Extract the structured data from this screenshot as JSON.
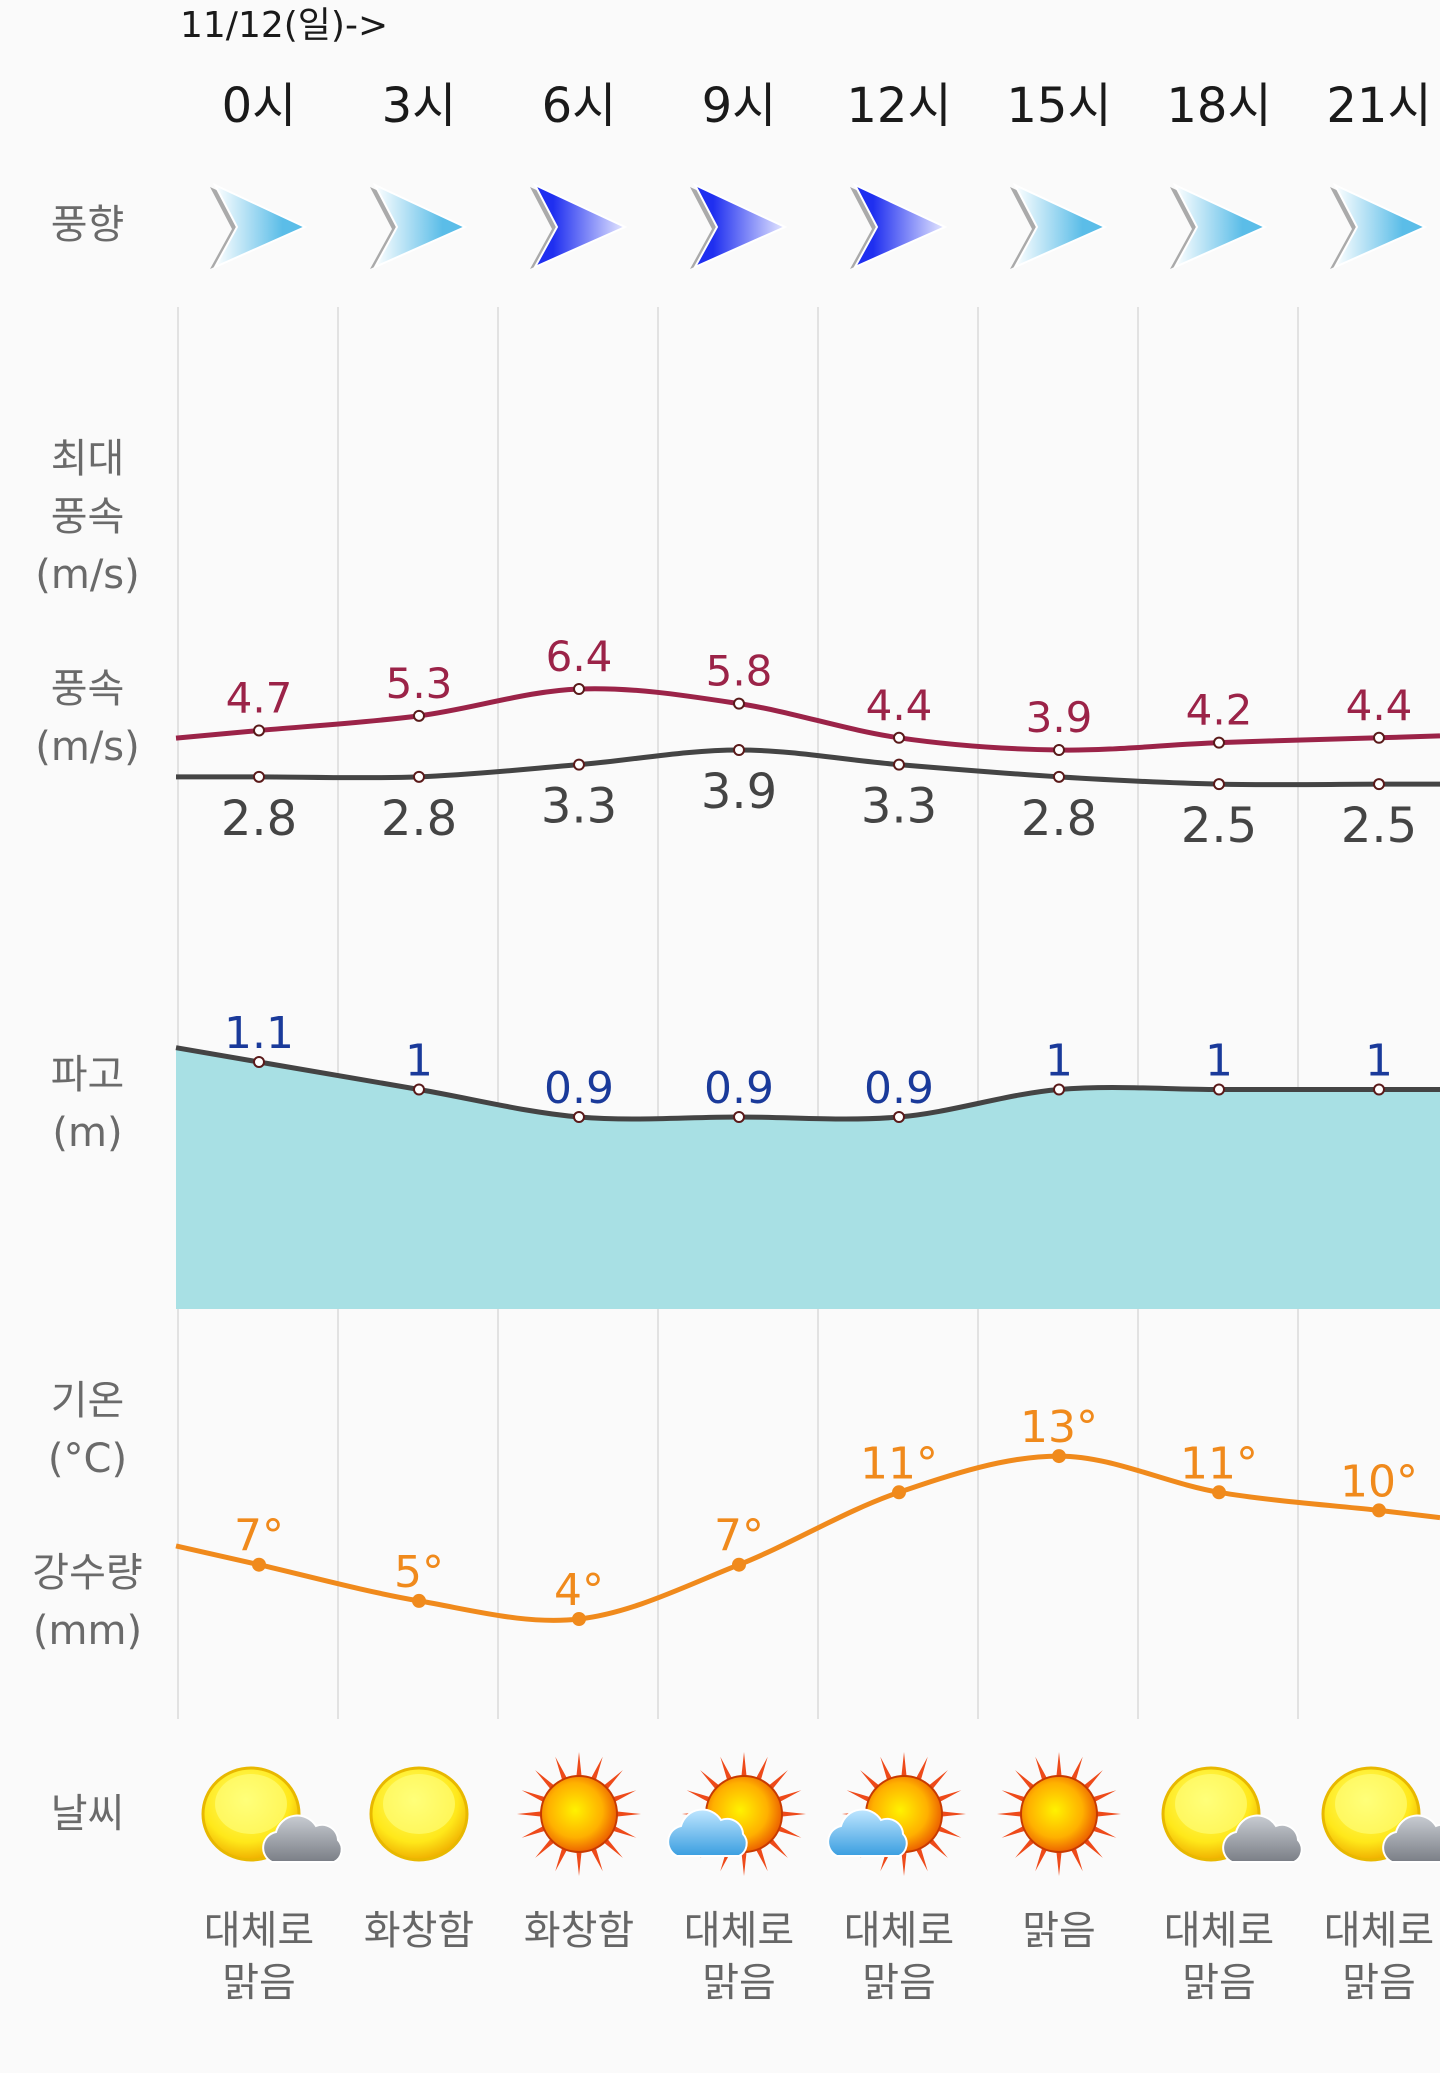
{
  "header": {
    "date": "11/12(일)->"
  },
  "hours": [
    "0시",
    "3시",
    "6시",
    "9시",
    "12시",
    "15시",
    "18시",
    "21시"
  ],
  "labels": {
    "wind_dir": "풍향",
    "max_wind": [
      "최대",
      "풍속",
      "(m/s)"
    ],
    "wind": [
      "풍속",
      "(m/s)"
    ],
    "wave": [
      "파고",
      "(m)"
    ],
    "temp": [
      "기온",
      "(°C)"
    ],
    "rain": [
      "강수량",
      "(mm)"
    ],
    "weather": "날씨"
  },
  "wind_direction": [
    {
      "dir": "east",
      "strength": "light"
    },
    {
      "dir": "east",
      "strength": "light"
    },
    {
      "dir": "east",
      "strength": "strong"
    },
    {
      "dir": "east",
      "strength": "strong"
    },
    {
      "dir": "east",
      "strength": "strong"
    },
    {
      "dir": "east",
      "strength": "light"
    },
    {
      "dir": "east",
      "strength": "light"
    },
    {
      "dir": "east",
      "strength": "light"
    }
  ],
  "chart_data": [
    {
      "type": "line",
      "name": "max_wind_speed",
      "unit": "m/s",
      "color": "#9b2348",
      "values": [
        4.7,
        5.3,
        6.4,
        5.8,
        4.4,
        3.9,
        4.2,
        4.4
      ],
      "labels": [
        "4.7",
        "5.3",
        "6.4",
        "5.8",
        "4.4",
        "3.9",
        "4.2",
        "4.4"
      ]
    },
    {
      "type": "line",
      "name": "wind_speed",
      "unit": "m/s",
      "color": "#444444",
      "values": [
        2.8,
        2.8,
        3.3,
        3.9,
        3.3,
        2.8,
        2.5,
        2.5
      ],
      "labels": [
        "2.8",
        "2.8",
        "3.3",
        "3.9",
        "3.3",
        "2.8",
        "2.5",
        "2.5"
      ]
    },
    {
      "type": "area",
      "name": "wave_height",
      "unit": "m",
      "color": "#444444",
      "fill": "#a8e0e4",
      "label_color": "#1a3a9a",
      "values": [
        1.1,
        1,
        0.9,
        0.9,
        0.9,
        1,
        1,
        1
      ],
      "labels": [
        "1.1",
        "1",
        "0.9",
        "0.9",
        "0.9",
        "1",
        "1",
        "1"
      ]
    },
    {
      "type": "line",
      "name": "temperature",
      "unit": "°C",
      "color": "#f08a1c",
      "values": [
        7,
        5,
        4,
        7,
        11,
        13,
        11,
        10
      ],
      "labels": [
        "7°",
        "5°",
        "4°",
        "7°",
        "11°",
        "13°",
        "11°",
        "10°"
      ]
    }
  ],
  "weather": [
    {
      "icon": "sun-cloud-gray",
      "text": [
        "대체로",
        "맑음"
      ]
    },
    {
      "icon": "sun-plain",
      "text": [
        "화창함"
      ]
    },
    {
      "icon": "sun-rays",
      "text": [
        "화창함"
      ]
    },
    {
      "icon": "sun-rays-blue-cloud",
      "text": [
        "대체로",
        "맑음"
      ]
    },
    {
      "icon": "sun-rays-blue-cloud",
      "text": [
        "대체로",
        "맑음"
      ]
    },
    {
      "icon": "sun-rays",
      "text": [
        "맑음"
      ]
    },
    {
      "icon": "sun-cloud-gray",
      "text": [
        "대체로",
        "맑음"
      ]
    },
    {
      "icon": "sun-cloud-gray",
      "text": [
        "대체로",
        "맑음"
      ]
    }
  ]
}
